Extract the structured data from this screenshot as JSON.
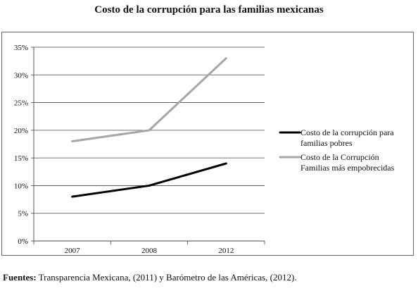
{
  "chart_data": {
    "type": "line",
    "title": "Costo de la corrupción para las familias mexicanas",
    "categories": [
      "2007",
      "2008",
      "2012"
    ],
    "series": [
      {
        "name": "Costo de la corrupción para familias pobres",
        "label_lines": [
          "Costo de la corrupción para",
          "familias pobres"
        ],
        "values": [
          8,
          10,
          14
        ],
        "color": "#000000"
      },
      {
        "name": "Costo de la Corrupción Familias más empobrecidas",
        "label_lines": [
          "Costo de la Corrupción",
          "Familias más empobrecidas"
        ],
        "values": [
          18,
          20,
          33
        ],
        "color": "#a6a6a6"
      }
    ],
    "ylim": [
      0,
      35
    ],
    "y_ticks": [
      "0%",
      "5%",
      "10%",
      "15%",
      "20%",
      "25%",
      "30%",
      "35%"
    ],
    "y_tick_values": [
      0,
      5,
      10,
      15,
      20,
      25,
      30,
      35
    ],
    "grid": true,
    "legend": "right"
  },
  "footer": {
    "source_label": "Fuentes:",
    "source_text": " Transparencia Mexicana, (2011) y Barómetro de las Américas, (2012)."
  }
}
